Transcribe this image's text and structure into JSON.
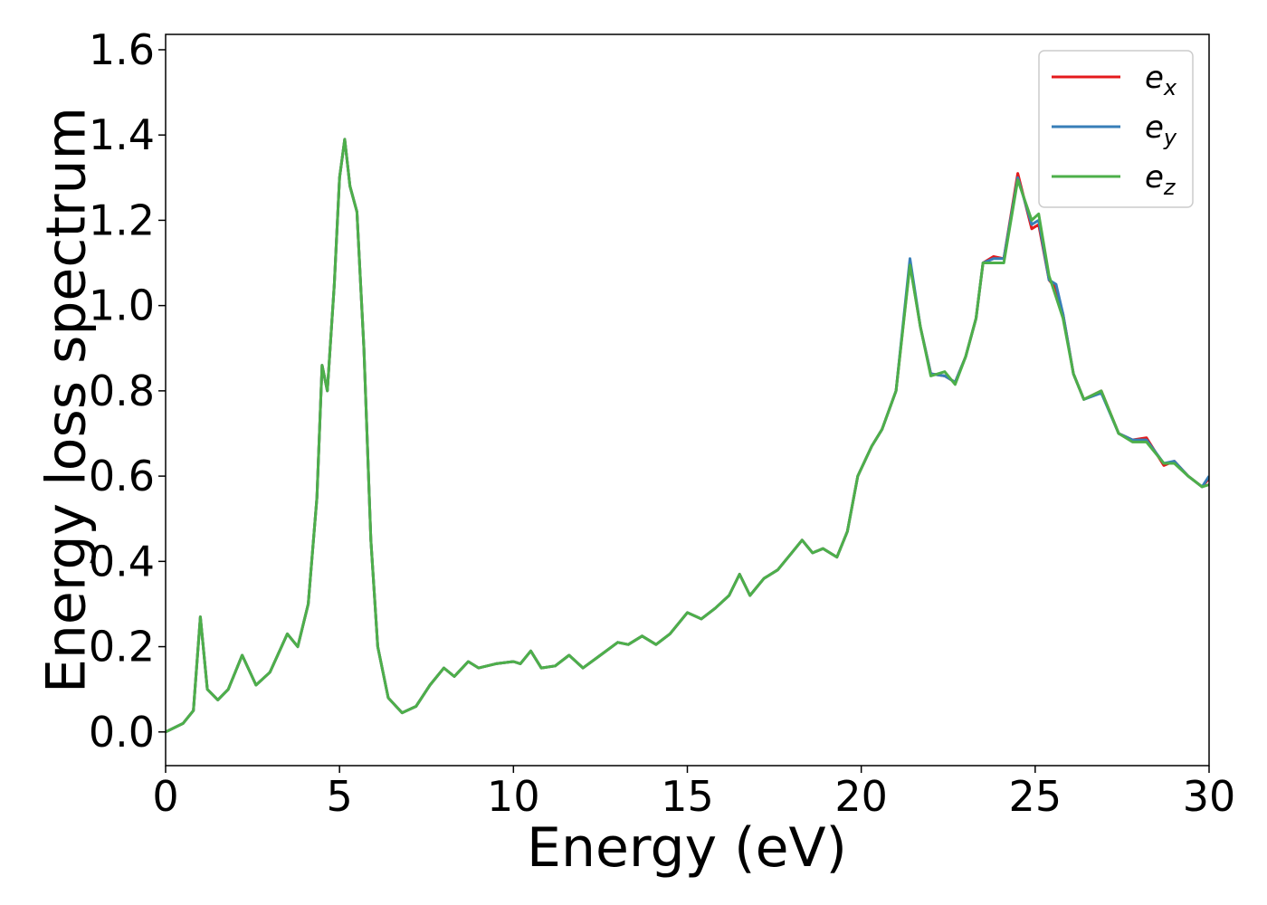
{
  "chart_data": {
    "type": "line",
    "xlabel": "Energy (eV)",
    "ylabel": "Energy loss spectrum",
    "x": [
      0,
      0.5,
      0.8,
      1.0,
      1.2,
      1.5,
      1.8,
      2.2,
      2.6,
      3.0,
      3.5,
      3.8,
      4.1,
      4.35,
      4.5,
      4.65,
      4.85,
      5.0,
      5.15,
      5.3,
      5.5,
      5.7,
      5.9,
      6.1,
      6.4,
      6.8,
      7.2,
      7.6,
      8.0,
      8.3,
      8.7,
      9.0,
      9.5,
      10.0,
      10.2,
      10.5,
      10.8,
      11.2,
      11.6,
      12.0,
      12.5,
      13.0,
      13.3,
      13.7,
      14.1,
      14.5,
      15.0,
      15.4,
      15.8,
      16.2,
      16.5,
      16.8,
      17.2,
      17.6,
      18.0,
      18.3,
      18.6,
      18.9,
      19.3,
      19.6,
      19.9,
      20.3,
      20.6,
      21.0,
      21.4,
      21.7,
      22.0,
      22.4,
      22.7,
      23.0,
      23.3,
      23.5,
      23.8,
      24.1,
      24.5,
      24.9,
      25.1,
      25.4,
      25.6,
      25.8,
      26.1,
      26.4,
      26.9,
      27.4,
      27.8,
      28.2,
      28.7,
      29.0,
      29.4,
      29.8,
      30.0
    ],
    "series": [
      {
        "name": "ex",
        "color": "#e41a1c",
        "values": [
          0,
          0.02,
          0.05,
          0.27,
          0.1,
          0.075,
          0.1,
          0.18,
          0.11,
          0.14,
          0.23,
          0.2,
          0.3,
          0.55,
          0.86,
          0.8,
          1.05,
          1.3,
          1.39,
          1.28,
          1.22,
          0.9,
          0.45,
          0.2,
          0.08,
          0.045,
          0.06,
          0.11,
          0.15,
          0.13,
          0.165,
          0.15,
          0.16,
          0.165,
          0.16,
          0.19,
          0.15,
          0.155,
          0.18,
          0.15,
          0.18,
          0.21,
          0.205,
          0.225,
          0.205,
          0.23,
          0.28,
          0.265,
          0.29,
          0.32,
          0.37,
          0.32,
          0.36,
          0.38,
          0.42,
          0.45,
          0.42,
          0.43,
          0.41,
          0.47,
          0.6,
          0.67,
          0.71,
          0.8,
          1.1,
          0.95,
          0.84,
          0.835,
          0.82,
          0.88,
          0.97,
          1.1,
          1.115,
          1.11,
          1.31,
          1.18,
          1.19,
          1.06,
          1.04,
          0.98,
          0.84,
          0.78,
          0.8,
          0.7,
          0.685,
          0.69,
          0.625,
          0.635,
          0.6,
          0.575,
          0.595
        ]
      },
      {
        "name": "ey",
        "color": "#377eb8",
        "values": [
          0,
          0.02,
          0.05,
          0.27,
          0.1,
          0.075,
          0.1,
          0.18,
          0.11,
          0.14,
          0.23,
          0.2,
          0.3,
          0.55,
          0.86,
          0.8,
          1.05,
          1.3,
          1.39,
          1.28,
          1.22,
          0.9,
          0.45,
          0.2,
          0.08,
          0.045,
          0.06,
          0.11,
          0.15,
          0.13,
          0.165,
          0.15,
          0.16,
          0.165,
          0.16,
          0.19,
          0.15,
          0.155,
          0.18,
          0.15,
          0.18,
          0.21,
          0.205,
          0.225,
          0.205,
          0.23,
          0.28,
          0.265,
          0.29,
          0.32,
          0.37,
          0.32,
          0.36,
          0.38,
          0.42,
          0.45,
          0.42,
          0.43,
          0.41,
          0.47,
          0.6,
          0.67,
          0.71,
          0.8,
          1.11,
          0.95,
          0.84,
          0.835,
          0.82,
          0.88,
          0.97,
          1.1,
          1.11,
          1.11,
          1.3,
          1.19,
          1.2,
          1.06,
          1.05,
          0.98,
          0.84,
          0.78,
          0.795,
          0.7,
          0.685,
          0.685,
          0.63,
          0.635,
          0.6,
          0.575,
          0.6
        ]
      },
      {
        "name": "ez",
        "color": "#4daf4a",
        "values": [
          0,
          0.02,
          0.05,
          0.27,
          0.1,
          0.075,
          0.1,
          0.18,
          0.11,
          0.14,
          0.23,
          0.2,
          0.3,
          0.55,
          0.86,
          0.8,
          1.05,
          1.3,
          1.39,
          1.28,
          1.22,
          0.9,
          0.45,
          0.2,
          0.08,
          0.045,
          0.06,
          0.11,
          0.15,
          0.13,
          0.165,
          0.15,
          0.16,
          0.165,
          0.16,
          0.19,
          0.15,
          0.155,
          0.18,
          0.15,
          0.18,
          0.21,
          0.205,
          0.225,
          0.205,
          0.23,
          0.28,
          0.265,
          0.29,
          0.32,
          0.37,
          0.32,
          0.36,
          0.38,
          0.42,
          0.45,
          0.42,
          0.43,
          0.41,
          0.47,
          0.6,
          0.67,
          0.71,
          0.8,
          1.095,
          0.95,
          0.835,
          0.845,
          0.815,
          0.88,
          0.97,
          1.1,
          1.1,
          1.1,
          1.295,
          1.2,
          1.215,
          1.07,
          1.02,
          0.97,
          0.84,
          0.78,
          0.8,
          0.7,
          0.68,
          0.68,
          0.63,
          0.63,
          0.6,
          0.575,
          0.58
        ]
      }
    ],
    "xlim": [
      0,
      30
    ],
    "xticks": [
      0,
      5,
      10,
      15,
      20,
      25,
      30
    ],
    "ylim": [
      -0.079,
      1.636
    ],
    "yticks": [
      {
        "value": 0,
        "label": "0.0"
      },
      {
        "value": 0.2,
        "label": "0.2"
      },
      {
        "value": 0.4,
        "label": "0.4"
      },
      {
        "value": 0.6,
        "label": "0.6"
      },
      {
        "value": 0.8,
        "label": "0.8"
      },
      {
        "value": 1.0,
        "label": "1.0"
      },
      {
        "value": 1.2,
        "label": "1.2"
      },
      {
        "value": 1.4,
        "label": "1.4"
      },
      {
        "value": 1.6,
        "label": "1.6"
      }
    ],
    "legend": "upper right"
  }
}
